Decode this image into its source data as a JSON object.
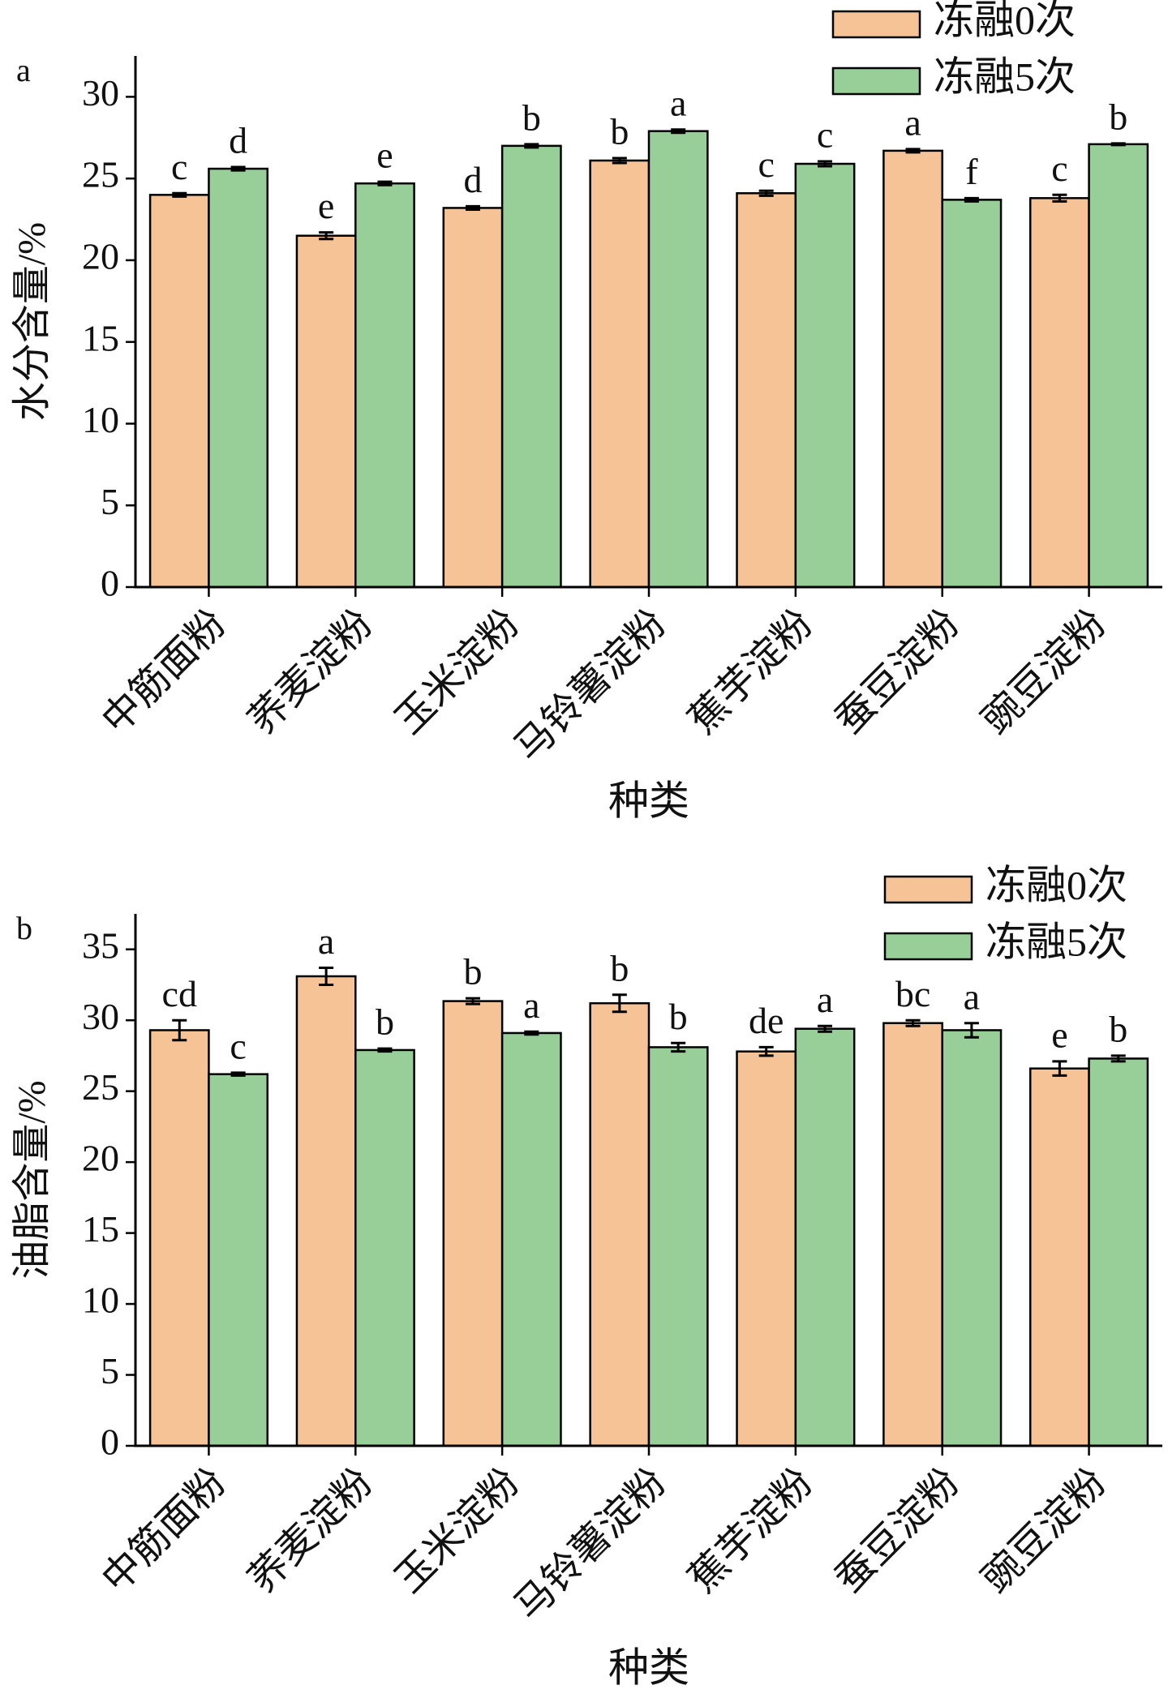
{
  "chart_data": [
    {
      "type": "bar",
      "panel": "a",
      "ylabel": "水分含量/%",
      "xlabel": "种类",
      "categories": [
        "中筋面粉",
        "荞麦淀粉",
        "玉米淀粉",
        "马铃薯淀粉",
        "蕉芋淀粉",
        "蚕豆淀粉",
        "豌豆淀粉"
      ],
      "series": [
        {
          "name": "冻融0次",
          "color": "#f5c396",
          "values": [
            24.0,
            21.5,
            23.2,
            26.1,
            24.1,
            26.7,
            23.8
          ],
          "errors": [
            0.1,
            0.2,
            0.1,
            0.15,
            0.15,
            0.1,
            0.2
          ],
          "labels": [
            "c",
            "e",
            "d",
            "b",
            "c",
            "a",
            "c"
          ]
        },
        {
          "name": "冻融5次",
          "color": "#98cf98",
          "values": [
            25.6,
            24.7,
            27.0,
            27.9,
            25.9,
            23.7,
            27.1
          ],
          "errors": [
            0.1,
            0.1,
            0.1,
            0.1,
            0.15,
            0.1,
            0.05
          ],
          "labels": [
            "d",
            "e",
            "b",
            "a",
            "c",
            "f",
            "b"
          ]
        }
      ],
      "ylim": [
        0,
        32.5
      ],
      "yticks": [
        0,
        5,
        10,
        15,
        20,
        25,
        30
      ],
      "legend": "upper right"
    },
    {
      "type": "bar",
      "panel": "b",
      "ylabel": "油脂含量/%",
      "xlabel": "种类",
      "categories": [
        "中筋面粉",
        "荞麦淀粉",
        "玉米淀粉",
        "马铃薯淀粉",
        "蕉芋淀粉",
        "蚕豆淀粉",
        "豌豆淀粉"
      ],
      "series": [
        {
          "name": "冻融0次",
          "color": "#f5c396",
          "values": [
            29.3,
            33.1,
            31.35,
            31.2,
            27.8,
            29.8,
            26.6
          ],
          "errors": [
            0.7,
            0.6,
            0.2,
            0.6,
            0.3,
            0.2,
            0.5
          ],
          "labels": [
            "cd",
            "a",
            "b",
            "b",
            "de",
            "bc",
            "e"
          ]
        },
        {
          "name": "冻融5次",
          "color": "#98cf98",
          "values": [
            26.2,
            27.9,
            29.1,
            28.1,
            29.4,
            29.3,
            27.3
          ],
          "errors": [
            0.1,
            0.1,
            0.1,
            0.3,
            0.2,
            0.5,
            0.2
          ],
          "labels": [
            "c",
            "b",
            "a",
            "b",
            "a",
            "a",
            "b"
          ]
        }
      ],
      "ylim": [
        0,
        37.5
      ],
      "yticks": [
        0,
        5,
        10,
        15,
        20,
        25,
        30,
        35
      ],
      "legend": "upper right"
    }
  ]
}
